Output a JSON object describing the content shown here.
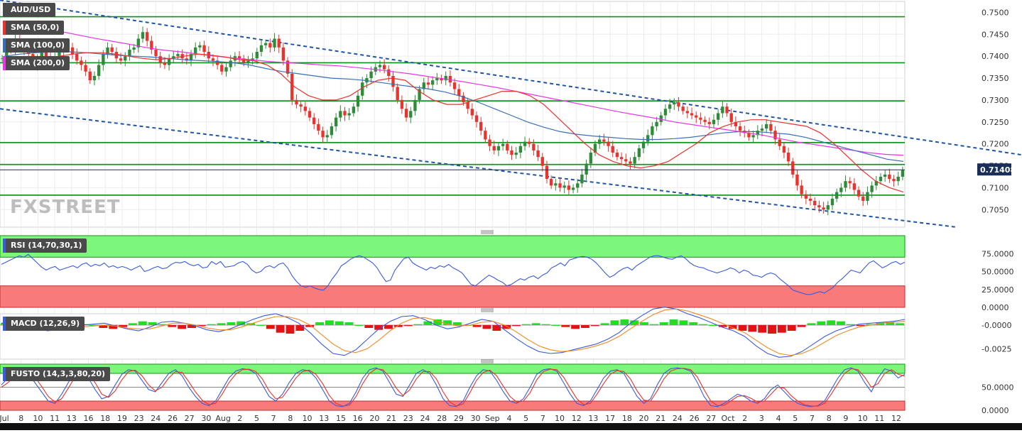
{
  "header": {
    "symbol": "AUD/USD",
    "last_price": "0.71408",
    "watermark": "FXSTREET"
  },
  "indicators": {
    "sma50": "SMA (50,0)",
    "sma100": "SMA (100,0)",
    "sma200": "SMA (200,0)",
    "rsi": "RSI (14,70,30,1)",
    "macd": "MACD (12,26,9)",
    "fusto": "FUSTO (14,3,3,80,20)"
  },
  "colors": {
    "sma50": "#e8332e",
    "sma100": "#3a6fb5",
    "sma200": "#e438e4",
    "candle_up": "#2e8b3a",
    "candle_down": "#e8332e",
    "support_lines": "#0a8f1a",
    "trendlines": "#1f55a5",
    "rsi_overbought": "#7cf77c",
    "rsi_oversold": "#f87a7a",
    "osc_line_1": "#3b5bdb",
    "osc_line_2": "#f08a24"
  },
  "chart_data": [
    {
      "type": "candlestick",
      "symbol": "AUD/USD",
      "x_tick_labels": [
        "Jul",
        "8",
        "10",
        "11",
        "13",
        "16",
        "18",
        "19",
        "23",
        "24",
        "26",
        "27",
        "30",
        "Aug",
        "2",
        "5",
        "7",
        "8",
        "10",
        "13",
        "15",
        "16",
        "20",
        "21",
        "23",
        "24",
        "28",
        "29",
        "30",
        "Sep",
        "4",
        "5",
        "7",
        "10",
        "12",
        "13",
        "17",
        "18",
        "20",
        "21",
        "24",
        "26",
        "27",
        "Oct",
        "2",
        "3",
        "4",
        "5",
        "7",
        "8",
        "9",
        "10",
        "11",
        "12"
      ],
      "y_ticks": [
        "0.7500",
        "0.7450",
        "0.7400",
        "0.7350",
        "0.7300",
        "0.7250",
        "0.7200",
        "0.7150",
        "0.7100",
        "0.7050"
      ],
      "ylim": [
        0.701,
        0.7525
      ],
      "last_price": 0.71408,
      "horizontal_levels": [
        0.749,
        0.7385,
        0.7298,
        0.7203,
        0.7153,
        0.7083
      ],
      "trendlines": [
        {
          "from": [
            0,
            0.7528
          ],
          "to": [
            263,
            0.715
          ]
        },
        {
          "from": [
            0,
            0.728
          ],
          "to": [
            230,
            0.701
          ]
        }
      ],
      "close_series": [
        0.7395,
        0.742,
        0.7415,
        0.744,
        0.7425,
        0.741,
        0.7405,
        0.738,
        0.7395,
        0.741,
        0.74,
        0.7385,
        0.7395,
        0.741,
        0.7425,
        0.742,
        0.7405,
        0.739,
        0.738,
        0.7365,
        0.7345,
        0.7355,
        0.738,
        0.7405,
        0.742,
        0.741,
        0.7395,
        0.739,
        0.74,
        0.7415,
        0.742,
        0.744,
        0.7455,
        0.7435,
        0.7415,
        0.74,
        0.7385,
        0.738,
        0.7395,
        0.74,
        0.7405,
        0.7395,
        0.739,
        0.7405,
        0.742,
        0.7425,
        0.741,
        0.7395,
        0.739,
        0.738,
        0.7365,
        0.7375,
        0.739,
        0.74,
        0.7395,
        0.7385,
        0.739,
        0.7395,
        0.741,
        0.7425,
        0.743,
        0.742,
        0.744,
        0.742,
        0.739,
        0.736,
        0.73,
        0.729,
        0.7285,
        0.7275,
        0.726,
        0.7245,
        0.723,
        0.7215,
        0.722,
        0.724,
        0.726,
        0.7275,
        0.7265,
        0.727,
        0.7285,
        0.731,
        0.734,
        0.735,
        0.7365,
        0.7375,
        0.738,
        0.737,
        0.7355,
        0.733,
        0.73,
        0.728,
        0.726,
        0.7275,
        0.73,
        0.7325,
        0.734,
        0.7335,
        0.7345,
        0.735,
        0.7345,
        0.7355,
        0.734,
        0.7325,
        0.731,
        0.7295,
        0.728,
        0.7265,
        0.725,
        0.723,
        0.721,
        0.7195,
        0.7185,
        0.7195,
        0.72,
        0.7185,
        0.7175,
        0.718,
        0.7195,
        0.7205,
        0.72,
        0.7185,
        0.717,
        0.715,
        0.712,
        0.7105,
        0.711,
        0.71,
        0.7105,
        0.7095,
        0.71,
        0.711,
        0.713,
        0.7155,
        0.718,
        0.72,
        0.721,
        0.7205,
        0.7195,
        0.718,
        0.717,
        0.7165,
        0.716,
        0.7155,
        0.717,
        0.719,
        0.7205,
        0.722,
        0.724,
        0.725,
        0.7265,
        0.728,
        0.729,
        0.7295,
        0.7285,
        0.7275,
        0.727,
        0.7265,
        0.726,
        0.7255,
        0.725,
        0.7245,
        0.7255,
        0.727,
        0.7285,
        0.727,
        0.725,
        0.724,
        0.723,
        0.7225,
        0.7215,
        0.722,
        0.723,
        0.7235,
        0.7245,
        0.723,
        0.721,
        0.7195,
        0.718,
        0.716,
        0.713,
        0.7105,
        0.7085,
        0.7075,
        0.707,
        0.706,
        0.7055,
        0.705,
        0.706,
        0.7075,
        0.709,
        0.71,
        0.7115,
        0.711,
        0.7095,
        0.708,
        0.707,
        0.709,
        0.7105,
        0.7115,
        0.7125,
        0.713,
        0.712,
        0.7115,
        0.7125,
        0.714
      ],
      "sma50_series": [
        0.738,
        0.7385,
        0.739,
        0.7395,
        0.74,
        0.7405,
        0.7408,
        0.7408,
        0.7405,
        0.74,
        0.7395,
        0.7392,
        0.7395,
        0.74,
        0.7405,
        0.7402,
        0.7398,
        0.7392,
        0.739,
        0.738,
        0.736,
        0.733,
        0.731,
        0.73,
        0.73,
        0.731,
        0.733,
        0.7345,
        0.735,
        0.7345,
        0.732,
        0.73,
        0.729,
        0.729,
        0.73,
        0.731,
        0.732,
        0.732,
        0.731,
        0.729,
        0.726,
        0.723,
        0.72,
        0.7175,
        0.716,
        0.715,
        0.7145,
        0.715,
        0.716,
        0.718,
        0.72,
        0.7225,
        0.724,
        0.725,
        0.7255,
        0.7255,
        0.725,
        0.7245,
        0.724,
        0.7225,
        0.72,
        0.717,
        0.714,
        0.7115,
        0.71,
        0.709
      ],
      "sma100_series": [
        0.74,
        0.7405,
        0.7408,
        0.741,
        0.741,
        0.7408,
        0.7405,
        0.7402,
        0.74,
        0.7398,
        0.7395,
        0.7392,
        0.739,
        0.7388,
        0.7385,
        0.738,
        0.7372,
        0.7365,
        0.736,
        0.7355,
        0.735,
        0.7348,
        0.7345,
        0.734,
        0.7335,
        0.733,
        0.7325,
        0.7318,
        0.7308,
        0.7295,
        0.728,
        0.7265,
        0.725,
        0.7238,
        0.7228,
        0.7222,
        0.7218,
        0.7215,
        0.7212,
        0.721,
        0.721,
        0.7212,
        0.7215,
        0.722,
        0.7225,
        0.7228,
        0.7228,
        0.7225,
        0.7222,
        0.7215,
        0.7205,
        0.7195,
        0.7185,
        0.7175,
        0.7165,
        0.716
      ],
      "sma200_series": [
        0.7475,
        0.747,
        0.7465,
        0.7458,
        0.745,
        0.7442,
        0.7435,
        0.7428,
        0.742,
        0.7414,
        0.741,
        0.7405,
        0.74,
        0.7396,
        0.7392,
        0.7388,
        0.7385,
        0.7383,
        0.738,
        0.7378,
        0.7374,
        0.737,
        0.7365,
        0.736,
        0.7354,
        0.7348,
        0.7342,
        0.7335,
        0.7328,
        0.732,
        0.7312,
        0.7304,
        0.7296,
        0.7288,
        0.728,
        0.7272,
        0.7265,
        0.7258,
        0.725,
        0.7244,
        0.7238,
        0.7232,
        0.7226,
        0.722,
        0.7212,
        0.7204,
        0.7198,
        0.7192,
        0.7186,
        0.718,
        0.7176,
        0.7174
      ]
    },
    {
      "type": "line",
      "name": "RSI (14,70,30,1)",
      "y_ticks": [
        "75.0000",
        "50.0000",
        "25.0000",
        "0.0000"
      ],
      "ylim": [
        0,
        100
      ],
      "overbought": 70,
      "oversold": 30,
      "values": [
        60,
        63,
        66,
        69,
        72,
        70,
        74,
        68,
        62,
        56,
        52,
        55,
        57,
        52,
        54,
        56,
        58,
        55,
        60,
        62,
        57,
        60,
        58,
        62,
        56,
        58,
        55,
        57,
        55,
        52,
        55,
        58,
        50,
        52,
        55,
        57,
        54,
        55,
        60,
        63,
        62,
        64,
        60,
        58,
        60,
        55,
        56,
        64,
        60,
        64,
        56,
        57,
        58,
        62,
        64,
        60,
        52,
        48,
        50,
        56,
        58,
        55,
        60,
        62,
        55,
        44,
        36,
        30,
        28,
        30,
        27,
        25,
        24,
        30,
        40,
        48,
        58,
        62,
        67,
        70,
        72,
        70,
        66,
        62,
        55,
        45,
        36,
        38,
        52,
        60,
        68,
        70,
        62,
        58,
        55,
        52,
        56,
        54,
        58,
        56,
        60,
        55,
        52,
        48,
        40,
        32,
        30,
        35,
        40,
        45,
        42,
        38,
        35,
        30,
        32,
        36,
        40,
        38,
        42,
        44,
        40,
        45,
        48,
        55,
        58,
        62,
        58,
        66,
        68,
        70,
        71,
        70,
        67,
        62,
        55,
        48,
        42,
        45,
        50,
        54,
        56,
        52,
        58,
        62,
        66,
        70,
        72,
        72,
        70,
        68,
        67,
        70,
        72,
        68,
        62,
        58,
        56,
        55,
        52,
        50,
        48,
        50,
        52,
        55,
        53,
        48,
        52,
        50,
        45,
        44,
        42,
        46,
        48,
        46,
        40,
        35,
        30,
        24,
        22,
        20,
        18,
        18,
        20,
        22,
        20,
        24,
        28,
        35,
        40,
        46,
        52,
        50,
        48,
        55,
        62,
        65,
        60,
        55,
        58,
        62,
        64,
        60,
        63
      ]
    },
    {
      "type": "bar",
      "name": "MACD (12,26,9)",
      "y_ticks": [
        "-0.0000",
        "-0.0025"
      ],
      "ylim": [
        -0.0036,
        0.0012
      ],
      "histogram": [
        0.0002,
        0.0003,
        -0.0002,
        -0.0004,
        -0.0005,
        -0.0004,
        -0.0002,
        0,
        0.0001,
        0,
        -0.0003,
        -0.0004,
        -0.0002,
        0.0002,
        0.0004,
        0.0003,
        0.0001,
        -0.0002,
        -0.0004,
        -0.0003,
        -0.0001,
        0.0001,
        0.0002,
        0.0003,
        0.0004,
        0.0002,
        0,
        -0.0004,
        -0.0008,
        -0.0009,
        -0.0006,
        -0.0002,
        0.0003,
        0.0005,
        0.0004,
        0.0003,
        0,
        -0.0003,
        -0.0005,
        -0.0004,
        -0.0002,
        -0.0001,
        0.0001,
        0.0004,
        0.0006,
        0.0005,
        0.0003,
        0,
        -0.0002,
        -0.0004,
        -0.0006,
        -0.0004,
        -0.0001,
        0.0001,
        0.0002,
        0.0001,
        0,
        -0.0002,
        -0.0004,
        -0.0003,
        -0.0001,
        0.0002,
        0.0005,
        0.0006,
        0.0005,
        0.0003,
        0.0001,
        0.0003,
        0.0006,
        0.0005,
        0.0003,
        0.0001,
        0,
        -0.0002,
        -0.0004,
        -0.0006,
        -0.0007,
        -0.0008,
        -0.0009,
        -0.0008,
        -0.0006,
        -0.0002,
        0.0002,
        0.0004,
        0.0005,
        0.0004,
        0.0001,
        -0.0001,
        0.0001,
        0.0003,
        0.0003,
        0.0002
      ],
      "macd_line": [
        0.0002,
        0.0004,
        0.0002,
        -0.0003,
        -0.0006,
        -0.0005,
        -0.0002,
        0,
        0.0001,
        0.0002,
        -0.0001,
        -0.0004,
        -0.0006,
        -0.0002,
        0.0003,
        0.0004,
        0.0002,
        -0.0001,
        -0.0005,
        -0.0007,
        -0.0004,
        0.0001,
        0.0006,
        0.001,
        0.0012,
        0.0008,
        0.0002,
        -0.0008,
        -0.002,
        -0.003,
        -0.0032,
        -0.0026,
        -0.0015,
        -0.0004,
        0.0004,
        0.0009,
        0.001,
        0.0006,
        0,
        -0.0004,
        -0.0002,
        0.0002,
        0.0006,
        0.0004,
        -0.0005,
        -0.0014,
        -0.0022,
        -0.0028,
        -0.003,
        -0.0029,
        -0.0026,
        -0.0023,
        -0.002,
        -0.0015,
        -0.0008,
        0.0002,
        0.001,
        0.0017,
        0.0019,
        0.0017,
        0.0012,
        0.0008,
        0.0003,
        -0.0002,
        -0.0006,
        -0.0012,
        -0.0022,
        -0.003,
        -0.0034,
        -0.0033,
        -0.0028,
        -0.002,
        -0.0012,
        -0.0006,
        -0.0002,
        0.0001,
        0.0002,
        0.0003,
        0.0004,
        0.0006
      ],
      "signal_line": [
        0,
        0.0002,
        0.0002,
        -0.0001,
        -0.0004,
        -0.0005,
        -0.0004,
        -0.0002,
        -0.0001,
        0,
        -0.0001,
        -0.0003,
        -0.0004,
        -0.0004,
        -0.0001,
        0.0002,
        0.0002,
        0,
        -0.0003,
        -0.0005,
        -0.0005,
        -0.0002,
        0.0002,
        0.0006,
        0.0009,
        0.0009,
        0.0006,
        0,
        -0.001,
        -0.002,
        -0.0027,
        -0.0029,
        -0.0025,
        -0.0016,
        -0.0006,
        0.0002,
        0.0007,
        0.0008,
        0.0005,
        0.0001,
        -0.0001,
        0,
        0.0003,
        0.0004,
        0,
        -0.0007,
        -0.0015,
        -0.0022,
        -0.0026,
        -0.0028,
        -0.0027,
        -0.0025,
        -0.0022,
        -0.0018,
        -0.0012,
        -0.0004,
        0.0004,
        0.0011,
        0.0016,
        0.0017,
        0.0015,
        0.0011,
        0.0007,
        0.0002,
        -0.0003,
        -0.0008,
        -0.0016,
        -0.0024,
        -0.003,
        -0.0032,
        -0.003,
        -0.0025,
        -0.0018,
        -0.0011,
        -0.0006,
        -0.0002,
        0,
        0.0002,
        0.0003,
        0.0004
      ]
    },
    {
      "type": "line",
      "name": "FUSTO (14,3,3,80,20)",
      "y_ticks": [
        "50.0000",
        "0.0000"
      ],
      "ylim": [
        0,
        100
      ],
      "overbought": 80,
      "oversold": 20,
      "k_line": [
        55,
        70,
        85,
        90,
        80,
        60,
        40,
        20,
        15,
        35,
        60,
        82,
        88,
        70,
        45,
        25,
        30,
        55,
        78,
        88,
        85,
        65,
        45,
        40,
        60,
        80,
        88,
        75,
        50,
        30,
        15,
        10,
        20,
        45,
        70,
        85,
        90,
        88,
        80,
        55,
        30,
        20,
        35,
        60,
        80,
        88,
        85,
        70,
        45,
        20,
        10,
        8,
        15,
        40,
        70,
        88,
        92,
        85,
        60,
        35,
        30,
        55,
        80,
        88,
        80,
        55,
        25,
        10,
        8,
        20,
        50,
        75,
        88,
        85,
        65,
        40,
        20,
        15,
        25,
        50,
        78,
        88,
        90,
        85,
        60,
        35,
        15,
        10,
        20,
        45,
        70,
        85,
        88,
        80,
        55,
        30,
        15,
        25,
        55,
        80,
        90,
        92,
        90,
        85,
        60,
        30,
        10,
        8,
        15,
        25,
        35,
        30,
        20,
        15,
        25,
        45,
        55,
        40,
        25,
        15,
        10,
        8,
        10,
        20,
        45,
        70,
        88,
        92,
        85,
        60,
        40,
        70,
        90,
        85,
        70,
        78
      ],
      "d_line": [
        50,
        60,
        75,
        85,
        85,
        72,
        52,
        30,
        18,
        25,
        48,
        72,
        85,
        80,
        60,
        35,
        28,
        42,
        66,
        84,
        87,
        75,
        55,
        42,
        50,
        70,
        84,
        82,
        62,
        40,
        22,
        12,
        15,
        35,
        60,
        78,
        88,
        89,
        84,
        68,
        42,
        25,
        28,
        48,
        70,
        84,
        87,
        78,
        58,
        32,
        15,
        9,
        11,
        30,
        58,
        80,
        90,
        88,
        72,
        48,
        32,
        44,
        68,
        84,
        84,
        68,
        40,
        18,
        9,
        14,
        38,
        65,
        82,
        87,
        75,
        52,
        30,
        18,
        20,
        38,
        66,
        84,
        89,
        88,
        72,
        48,
        25,
        12,
        15,
        35,
        58,
        78,
        86,
        84,
        68,
        42,
        22,
        20,
        42,
        68,
        85,
        90,
        91,
        88,
        72,
        45,
        20,
        10,
        11,
        20,
        30,
        32,
        26,
        18,
        20,
        35,
        50,
        48,
        32,
        20,
        12,
        9,
        9,
        15,
        35,
        58,
        80,
        90,
        88,
        72,
        50,
        58,
        80,
        88,
        78,
        74
      ]
    }
  ]
}
